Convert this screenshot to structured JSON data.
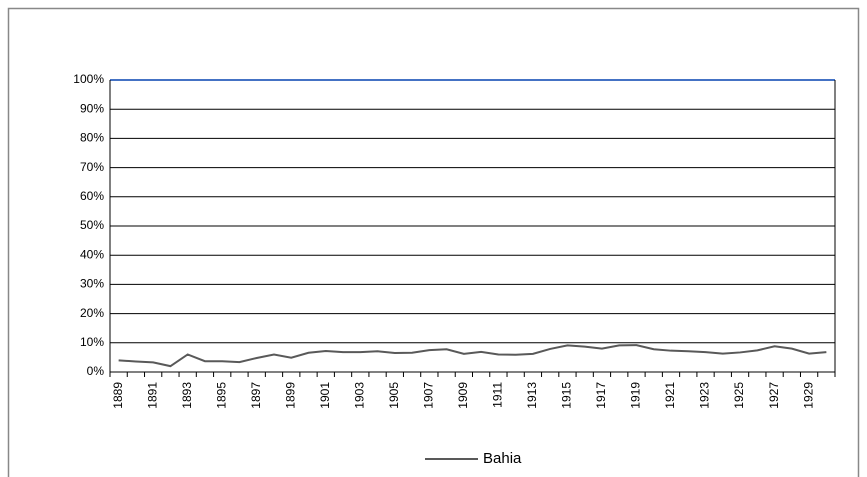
{
  "chart_data": {
    "type": "line",
    "categories": [
      "1889",
      null,
      "1891",
      null,
      "1893",
      null,
      "1895",
      null,
      "1897",
      null,
      "1899",
      null,
      "1901",
      null,
      "1903",
      null,
      "1905",
      null,
      "1907",
      null,
      "1909",
      null,
      "1911",
      null,
      "1913",
      null,
      "1915",
      null,
      "1917",
      null,
      "1919",
      null,
      "1921",
      null,
      "1923",
      null,
      "1925",
      null,
      "1927",
      null,
      "1929",
      null
    ],
    "series": [
      {
        "name": "Bahia",
        "color": "#595959",
        "values": [
          4,
          3.6,
          3.3,
          2,
          6,
          3.7,
          3.7,
          3.4,
          4.8,
          6,
          4.9,
          6.6,
          7.2,
          6.8,
          6.8,
          7.1,
          6.5,
          6.6,
          7.5,
          7.8,
          6.2,
          6.9,
          6,
          5.9,
          6.2,
          7.9,
          9.1,
          8.7,
          8,
          9.1,
          9.2,
          7.8,
          7.3,
          7.1,
          6.8,
          6.3,
          6.7,
          7.4,
          8.8,
          8,
          6.3,
          6.8
        ]
      }
    ],
    "ylim": [
      0,
      100
    ],
    "yticks": [
      {
        "value": 0,
        "label": "0%"
      },
      {
        "value": 10,
        "label": "10%"
      },
      {
        "value": 20,
        "label": "20%"
      },
      {
        "value": 30,
        "label": "30%"
      },
      {
        "value": 40,
        "label": "40%"
      },
      {
        "value": 50,
        "label": "50%"
      },
      {
        "value": 60,
        "label": "60%"
      },
      {
        "value": 70,
        "label": "70%"
      },
      {
        "value": 80,
        "label": "80%"
      },
      {
        "value": 90,
        "label": "90%"
      },
      {
        "value": 100,
        "label": "100%"
      }
    ],
    "grid": true,
    "legend": "bottom"
  }
}
